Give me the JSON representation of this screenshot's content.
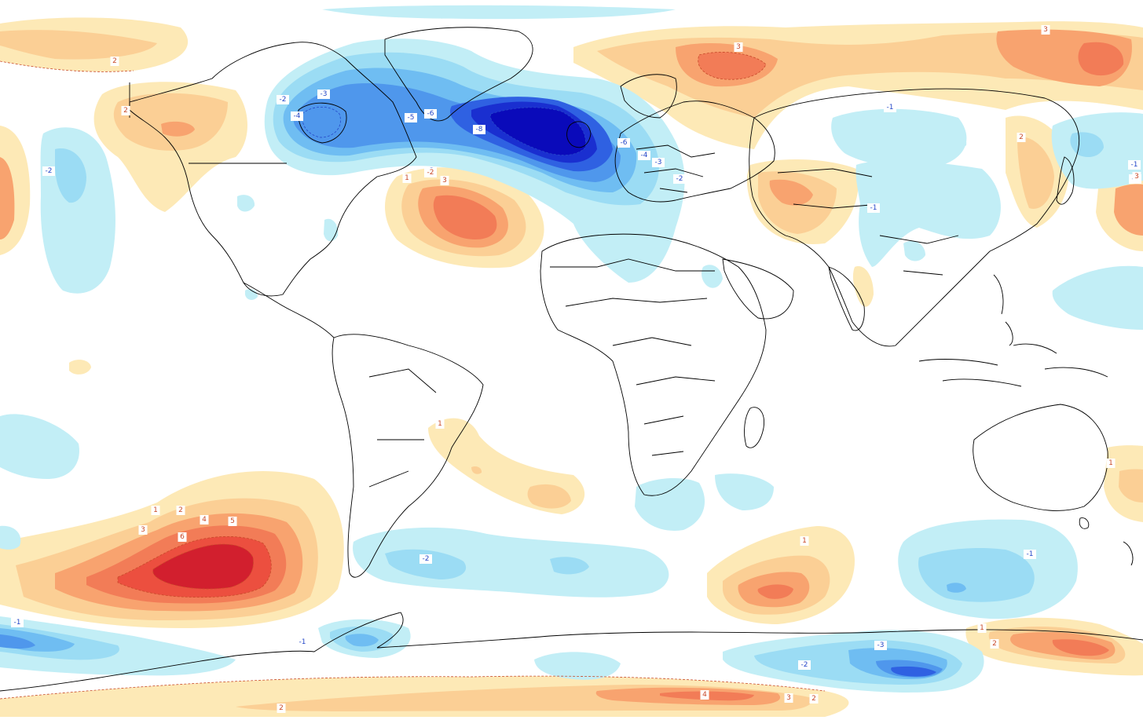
{
  "map": {
    "palette": {
      "pos1": "#fde9b6",
      "pos2": "#fbcf95",
      "pos3": "#f8a36f",
      "pos4": "#f27c57",
      "pos5": "#ec4f3f",
      "pos6": "#d21f2e",
      "neg1": "#c2eef6",
      "neg2": "#9bdcf4",
      "neg3": "#6fbdf2",
      "neg4": "#4f97ec",
      "neg5": "#2f61e2",
      "neg6": "#1a2fd0",
      "neg8": "#0a0aba",
      "pos_line": "#c84a2a",
      "neg_line": "#2648c8",
      "coast": "#000000"
    },
    "contour_labels": {
      "l_2_a": "2",
      "l_2_b": "-2",
      "l_3_a": "-3",
      "l_4_a": "-4",
      "l_2_c": "2",
      "l_m2_d": "-2",
      "l_m5": "-5",
      "l_m6": "-6",
      "l_m8": "-8",
      "l_m6_b": "-6",
      "l_m4_b": "-4",
      "l_m3_b": "-3",
      "l_m2_e": "-2",
      "l_m2_f": "-2",
      "l_1_a": "1",
      "l_2_g": "-2",
      "l_3_b": "3",
      "l_3_c": "3",
      "l_3_d": "3",
      "l_m1_a": "-1",
      "l_2_h": "2",
      "l_m1_b": "-1",
      "l_m1_c": "-1",
      "l_3_e": "3",
      "l_1_b": "1",
      "l_1_c": "1",
      "l_2_i": "2",
      "l_4_b": "4",
      "l_5_a": "5",
      "l_3_f": "3",
      "l_6_a": "6",
      "l_m2_j": "-2",
      "l_1_d": "1",
      "l_m1_d": "-1",
      "l_1_e": "1",
      "l_m1_e": "-1",
      "l_2_k": "2",
      "l_m3_c": "-3",
      "l_m2_k": "-2",
      "l_m1_f": "-1",
      "l_4_c": "4",
      "l_3_g": "3",
      "l_2_l": "2",
      "l_2_m": "2",
      "l_1_f": "1",
      "l_m1_g": "-1"
    }
  }
}
